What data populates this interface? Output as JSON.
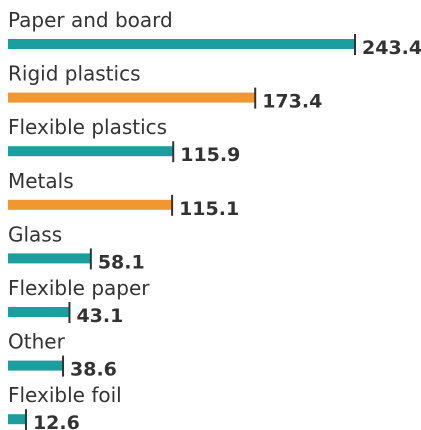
{
  "chart_data": {
    "type": "bar",
    "orientation": "horizontal",
    "categories": [
      "Paper and board",
      "Rigid plastics",
      "Flexible plastics",
      "Metals",
      "Glass",
      "Flexible paper",
      "Other",
      "Flexible foil"
    ],
    "values": [
      243.4,
      173.4,
      115.9,
      115.1,
      58.1,
      43.1,
      38.6,
      12.6
    ],
    "value_labels": [
      "243.4",
      "173.4",
      "115.9",
      "115.1",
      "58.1",
      "43.1",
      "38.6",
      "12.6"
    ],
    "bar_colors": [
      "#1b9e9e",
      "#f0982f",
      "#1b9e9e",
      "#f0982f",
      "#1b9e9e",
      "#1b9e9e",
      "#1b9e9e",
      "#1b9e9e"
    ],
    "title": "",
    "xlabel": "",
    "ylabel": "",
    "xlim": [
      0,
      243.4
    ],
    "grid": false,
    "legend": "none"
  }
}
